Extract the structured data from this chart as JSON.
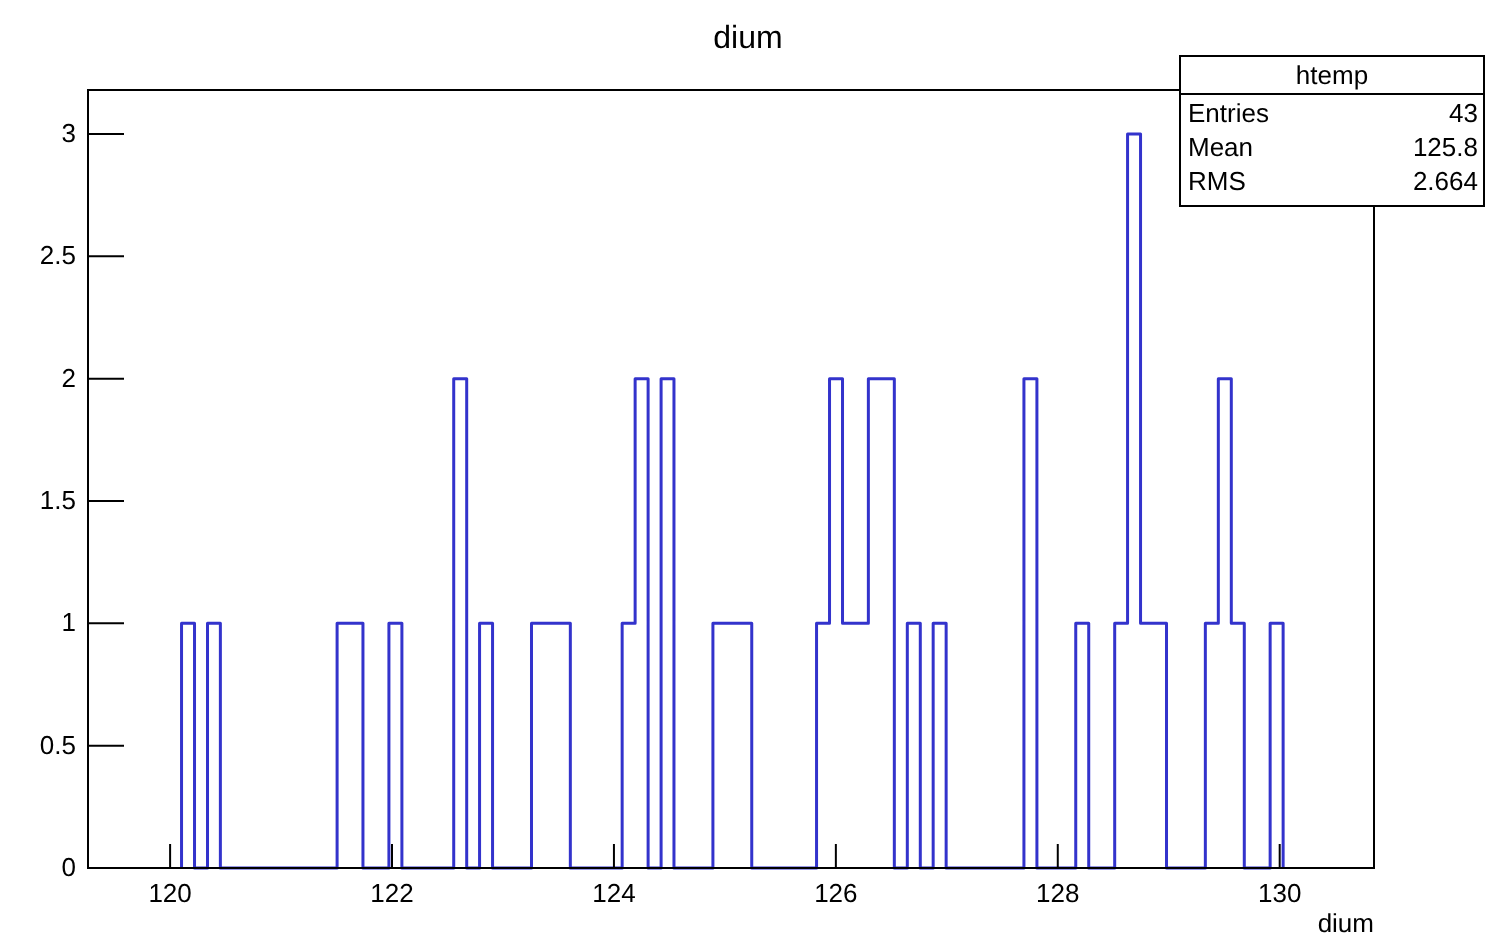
{
  "chart_data": {
    "type": "histogram",
    "title": "dium",
    "xlabel": "dium",
    "bins": [
      120.103,
      120.22,
      120.337,
      120.453,
      120.57,
      120.687,
      120.804,
      120.921,
      121.037,
      121.154,
      121.271,
      121.388,
      121.505,
      121.621,
      121.738,
      121.855,
      121.972,
      122.089,
      122.205,
      122.322,
      122.439,
      122.556,
      122.673,
      122.789,
      122.906,
      123.023,
      123.14,
      123.257,
      123.373,
      123.49,
      123.607,
      123.724,
      123.841,
      123.957,
      124.074,
      124.191,
      124.308,
      124.425,
      124.541,
      124.658,
      124.775,
      124.892,
      125.009,
      125.125,
      125.242,
      125.359,
      125.476,
      125.593,
      125.709,
      125.826,
      125.943,
      126.06,
      126.177,
      126.293,
      126.41,
      126.527,
      126.644,
      126.761,
      126.877,
      126.994,
      127.111,
      127.228,
      127.345,
      127.461,
      127.578,
      127.695,
      127.812,
      127.929,
      128.045,
      128.162,
      128.279,
      128.396,
      128.513,
      128.629,
      128.746,
      128.863,
      128.98,
      129.097,
      129.213,
      129.33,
      129.447,
      129.564,
      129.681,
      129.797,
      129.914,
      130.031
    ],
    "values": [
      1,
      0,
      1,
      0,
      0,
      0,
      0,
      0,
      0,
      0,
      0,
      0,
      1,
      1,
      0,
      0,
      1,
      0,
      0,
      0,
      0,
      2,
      0,
      1,
      0,
      0,
      0,
      1,
      1,
      1,
      0,
      0,
      0,
      0,
      1,
      2,
      0,
      2,
      0,
      0,
      0,
      1,
      1,
      1,
      0,
      0,
      0,
      0,
      0,
      1,
      2,
      1,
      1,
      2,
      2,
      0,
      1,
      0,
      1,
      0,
      0,
      0,
      0,
      0,
      0,
      2,
      0,
      0,
      0,
      1,
      0,
      0,
      1,
      3,
      1,
      1,
      0,
      0,
      0,
      1,
      2,
      1,
      0,
      0,
      1
    ],
    "color": "#3333cc",
    "xlim": [
      119.26,
      130.85
    ],
    "xticks": [
      120,
      122,
      124,
      126,
      128,
      130
    ],
    "ylim": [
      0,
      3.18
    ],
    "yticks": [
      0,
      0.5,
      1,
      1.5,
      2,
      2.5,
      3
    ],
    "grid": false,
    "annotations": [
      "htemp",
      "Entries",
      "43",
      "Mean",
      "125.8",
      "RMS",
      "2.664"
    ]
  }
}
